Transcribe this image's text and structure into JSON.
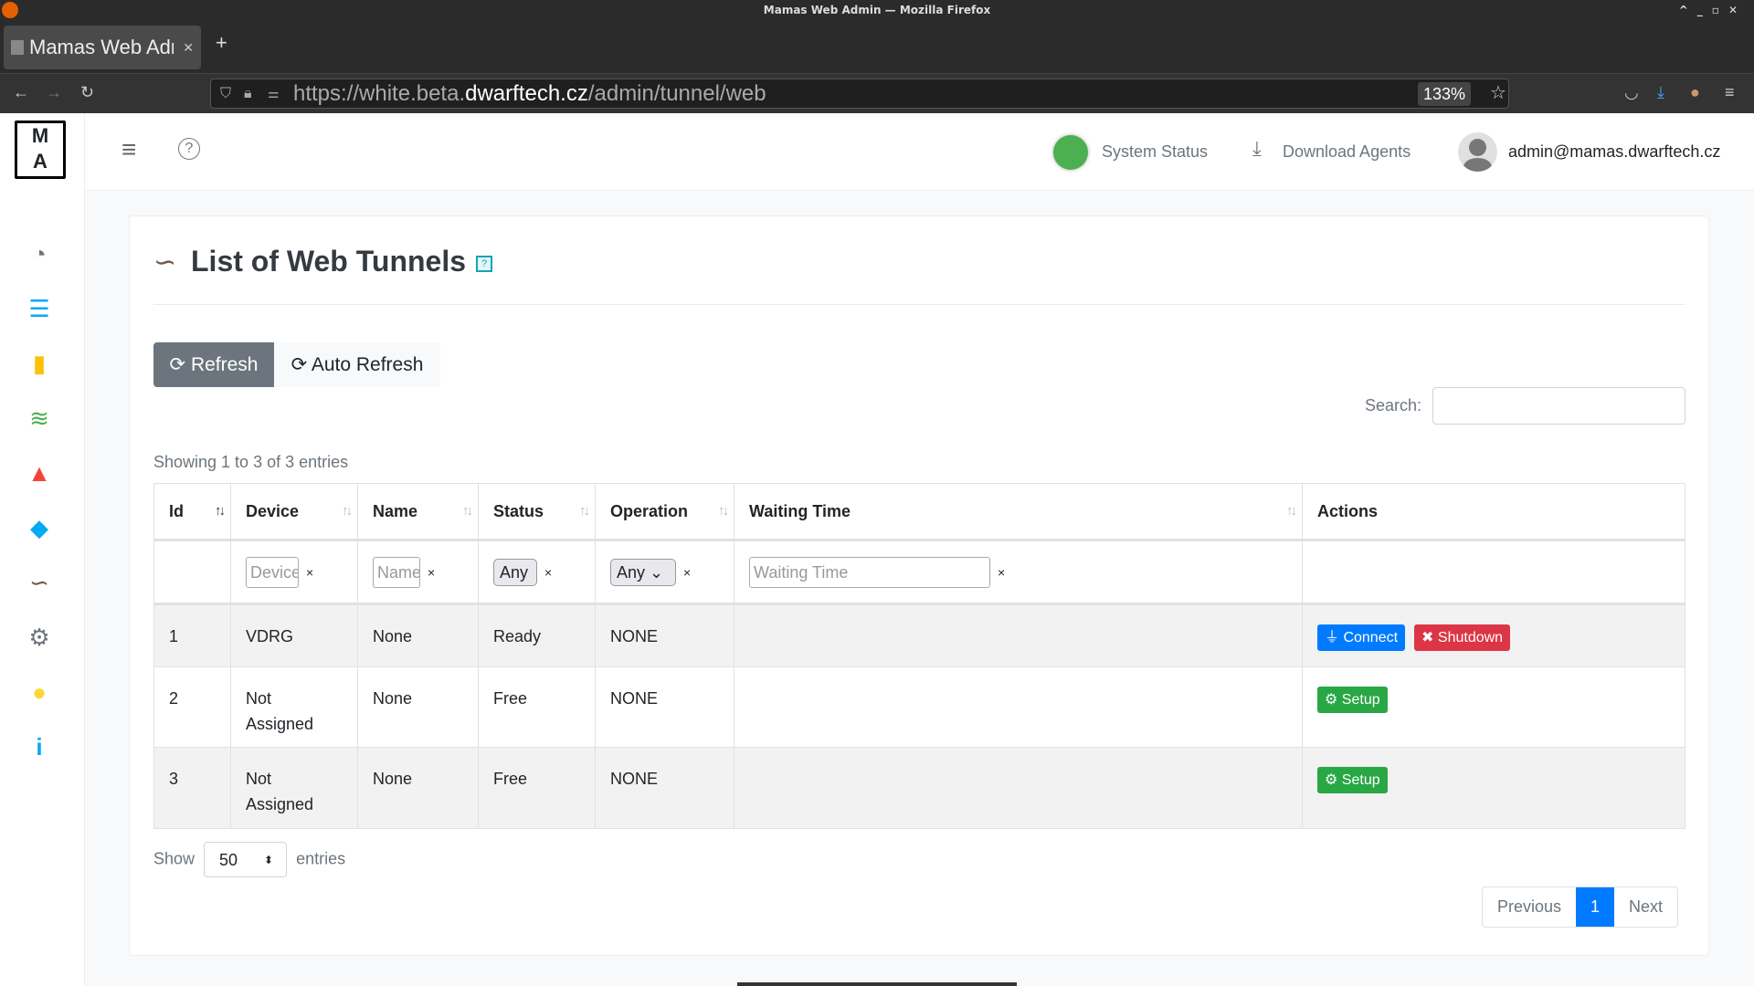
{
  "window": {
    "title": "Mamas Web Admin — Mozilla Firefox"
  },
  "browser": {
    "tab_title": "Mamas Web Admin",
    "url_prefix": "https://white.beta.",
    "url_domain": "dwarftech.cz",
    "url_path": "/admin/tunnel/web",
    "zoom": "133%"
  },
  "header": {
    "system_status": "System Status",
    "download_agents": "Download Agents",
    "user": "admin@mamas.dwarftech.cz",
    "status_color": "#4caf50"
  },
  "sidebar": {
    "items": [
      {
        "icon": "dashboard-icon",
        "color": "#6c757d"
      },
      {
        "icon": "list-icon",
        "color": "#03a9f4"
      },
      {
        "icon": "file-icon",
        "color": "#ffc107"
      },
      {
        "icon": "layers-icon",
        "color": "#4caf50"
      },
      {
        "icon": "warning-icon",
        "color": "#f44336"
      },
      {
        "icon": "tags-icon",
        "color": "#03a9f4"
      },
      {
        "icon": "route-icon",
        "color": "#795548"
      },
      {
        "icon": "gear-icon",
        "color": "#6c757d"
      },
      {
        "icon": "help-icon",
        "color": "#ffeb3b"
      },
      {
        "icon": "info-icon",
        "color": "#03a9f4"
      }
    ]
  },
  "page": {
    "title": "List of Web Tunnels",
    "help_badge": "?",
    "refresh": "Refresh",
    "auto_refresh": "Auto Refresh",
    "search_label": "Search:",
    "search_value": "",
    "showing": "Showing 1 to 3 of 3 entries"
  },
  "table": {
    "columns": [
      "Id",
      "Device",
      "Name",
      "Status",
      "Operation",
      "Waiting Time",
      "Actions"
    ],
    "filters": {
      "device": "Device",
      "name": "Name",
      "status": "Any",
      "operation": "Any",
      "waiting_time": "Waiting Time",
      "clear": "×"
    },
    "rows": [
      {
        "id": "1",
        "device": "VDRG",
        "name": "None",
        "status": "Ready",
        "operation": "NONE",
        "waiting": "",
        "actions": [
          "Connect",
          "Shutdown"
        ]
      },
      {
        "id": "2",
        "device": "Not Assigned",
        "name": "None",
        "status": "Free",
        "operation": "NONE",
        "waiting": "",
        "actions": [
          "Setup"
        ]
      },
      {
        "id": "3",
        "device": "Not Assigned",
        "name": "None",
        "status": "Free",
        "operation": "NONE",
        "waiting": "",
        "actions": [
          "Setup"
        ]
      }
    ]
  },
  "footer": {
    "show": "Show",
    "length": "50",
    "entries": "entries",
    "previous": "Previous",
    "page": "1",
    "next": "Next"
  }
}
